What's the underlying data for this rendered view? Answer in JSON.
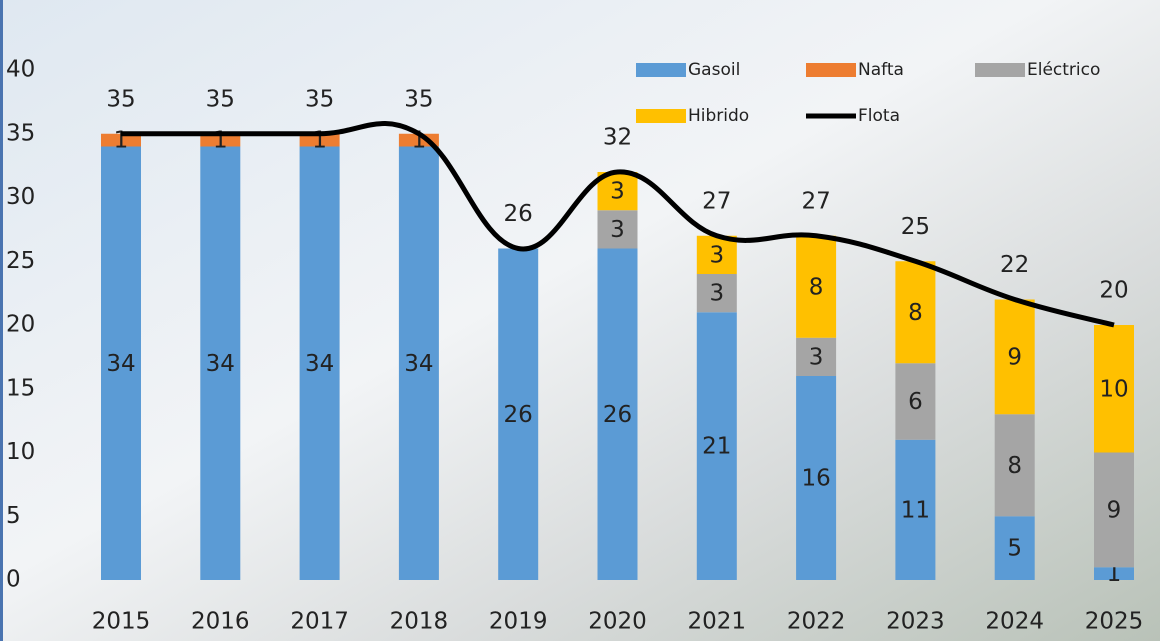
{
  "chart_data": {
    "type": "bar",
    "categories": [
      "2015",
      "2016",
      "2017",
      "2018",
      "2019",
      "2020",
      "2021",
      "2022",
      "2023",
      "2024",
      "2025"
    ],
    "series": [
      {
        "name": "Gasoil",
        "color": "#5b9bd5",
        "values": [
          34,
          34,
          34,
          34,
          26,
          26,
          21,
          16,
          11,
          5,
          1
        ]
      },
      {
        "name": "Nafta",
        "color": "#ed7d31",
        "values": [
          1,
          1,
          1,
          1,
          null,
          null,
          null,
          null,
          null,
          null,
          null
        ]
      },
      {
        "name": "Eléctrico",
        "color": "#a5a5a5",
        "values": [
          null,
          null,
          null,
          null,
          null,
          3,
          3,
          3,
          6,
          8,
          9
        ]
      },
      {
        "name": "Hibrido",
        "color": "#ffc000",
        "values": [
          null,
          null,
          null,
          null,
          null,
          3,
          3,
          8,
          8,
          9,
          10
        ]
      },
      {
        "name": "Flota",
        "color": "#000000",
        "type": "line",
        "values": [
          35,
          35,
          35,
          35,
          26,
          32,
          27,
          27,
          25,
          22,
          20
        ]
      }
    ],
    "stacked": true,
    "ylim": [
      0,
      40
    ],
    "yticks": [
      0,
      5,
      10,
      15,
      20,
      25,
      30,
      35,
      40
    ]
  }
}
